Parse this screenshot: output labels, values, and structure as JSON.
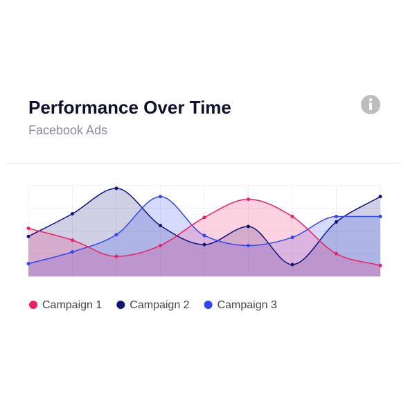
{
  "chart_data": {
    "type": "line",
    "title": "Performance Over Time",
    "subtitle": "Facebook Ads",
    "categories": [
      null,
      null,
      null,
      null,
      null,
      null,
      null,
      null,
      null
    ],
    "ylim": [
      0,
      100
    ],
    "grid": true,
    "area": true,
    "legend": "bottom-left",
    "series": [
      {
        "name": "Campaign 1",
        "color": "#ee1f68",
        "values": [
          53,
          40,
          22,
          34,
          65,
          85,
          66,
          25,
          12
        ]
      },
      {
        "name": "Campaign 2",
        "color": "#0d1577",
        "values": [
          44,
          69,
          97,
          56,
          35,
          55,
          13,
          60,
          88
        ]
      },
      {
        "name": "Campaign 3",
        "color": "#3346f4",
        "values": [
          14,
          27,
          46,
          88,
          45,
          34,
          43,
          66,
          66
        ]
      }
    ]
  }
}
